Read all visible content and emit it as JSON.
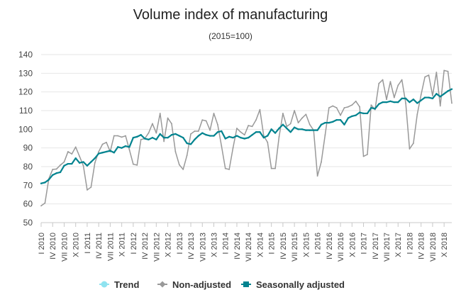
{
  "chart_data": {
    "type": "line",
    "title": "Volume index of manufacturing",
    "subtitle": "(2015=100)",
    "ylim": [
      50,
      140
    ],
    "yticks": [
      50,
      60,
      70,
      80,
      90,
      100,
      110,
      120,
      130,
      140
    ],
    "grid": true,
    "legend_position": "bottom",
    "x_labels": [
      "I 2010",
      "IV 2010",
      "VII 2010",
      "X 2010",
      "I 2011",
      "IV 2011",
      "VII 2011",
      "X 2011",
      "I 2012",
      "IV 2012",
      "VII 2012",
      "X 2012",
      "I 2013",
      "IV 2013",
      "VII 2013",
      "X 2013",
      "I 2014",
      "IV 2014",
      "VII 2014",
      "X 2014",
      "I 2015",
      "IV 2015",
      "VII 2015",
      "X 2015",
      "I 2016",
      "IV 2016",
      "VII 2016",
      "X 2016",
      "I 2017",
      "IV 2017",
      "VII 2017",
      "X 2017",
      "I 2018",
      "IV 2018",
      "VII 2018",
      "X 2018"
    ],
    "series": [
      {
        "name": "Trend",
        "color": "#8fe3f0",
        "values": []
      },
      {
        "name": "Non-adjusted",
        "color": "#999999",
        "values": [
          59,
          60.5,
          73.5,
          78.5,
          78.7,
          80.8,
          82.5,
          88,
          86.8,
          90.5,
          85.5,
          80.5,
          67.5,
          69,
          82,
          88,
          92,
          93,
          88,
          96.5,
          96.5,
          95.8,
          96.5,
          89,
          81.3,
          80.8,
          94.5,
          95,
          98,
          103,
          98,
          108.5,
          93.5,
          106,
          103,
          88,
          81,
          78.5,
          86,
          97.5,
          99,
          99,
          105,
          104.5,
          99.5,
          108.5,
          102.5,
          91,
          79,
          78.5,
          90,
          100.5,
          98.5,
          97,
          102,
          101.5,
          105,
          110.5,
          96.5,
          93,
          79,
          79,
          96,
          108.5,
          101.5,
          103,
          110,
          103.5,
          106,
          108,
          102.5,
          99.5,
          75,
          82.5,
          97,
          111.5,
          112.5,
          111.5,
          107.5,
          111.5,
          112,
          113,
          115,
          112,
          85.5,
          86.5,
          113,
          110.5,
          124.5,
          126.5,
          116,
          125.5,
          117,
          123.5,
          126.5,
          114,
          89.5,
          92.5,
          108,
          118.5,
          128,
          129,
          118,
          130.5,
          112.5,
          131.5,
          131,
          114
        ]
      },
      {
        "name": "Seasonally adjusted",
        "color": "#00838f",
        "values": [
          71,
          71.5,
          73,
          75.5,
          76.5,
          77,
          80.5,
          81.5,
          81.5,
          84.5,
          82,
          82.5,
          80.5,
          82.5,
          84.5,
          87,
          87.5,
          88,
          88.5,
          87.5,
          90.5,
          90,
          91,
          90.5,
          95.5,
          96,
          97,
          95,
          94.5,
          95.5,
          94.5,
          97.5,
          95.5,
          95.5,
          97,
          97.5,
          96.5,
          95.5,
          92.5,
          92,
          94.5,
          96.5,
          98,
          97,
          96.5,
          96.5,
          98.5,
          99,
          95,
          96,
          95.5,
          96.5,
          95.5,
          95,
          95.5,
          97,
          98.5,
          98.5,
          95.5,
          96.5,
          100,
          98,
          100.5,
          102.5,
          100.5,
          98.5,
          101,
          100,
          100,
          99.5,
          99.5,
          99.5,
          99.5,
          102.5,
          103.5,
          103.5,
          104,
          105,
          105,
          102.5,
          106,
          107,
          107.5,
          109,
          108.5,
          108.5,
          111.5,
          111,
          113.5,
          114.5,
          114.5,
          115,
          114.5,
          114.5,
          116.5,
          116.5,
          114.5,
          116,
          114,
          115.5,
          117,
          117,
          116.5,
          119,
          117.5,
          119,
          120.5,
          121.5
        ]
      }
    ]
  }
}
